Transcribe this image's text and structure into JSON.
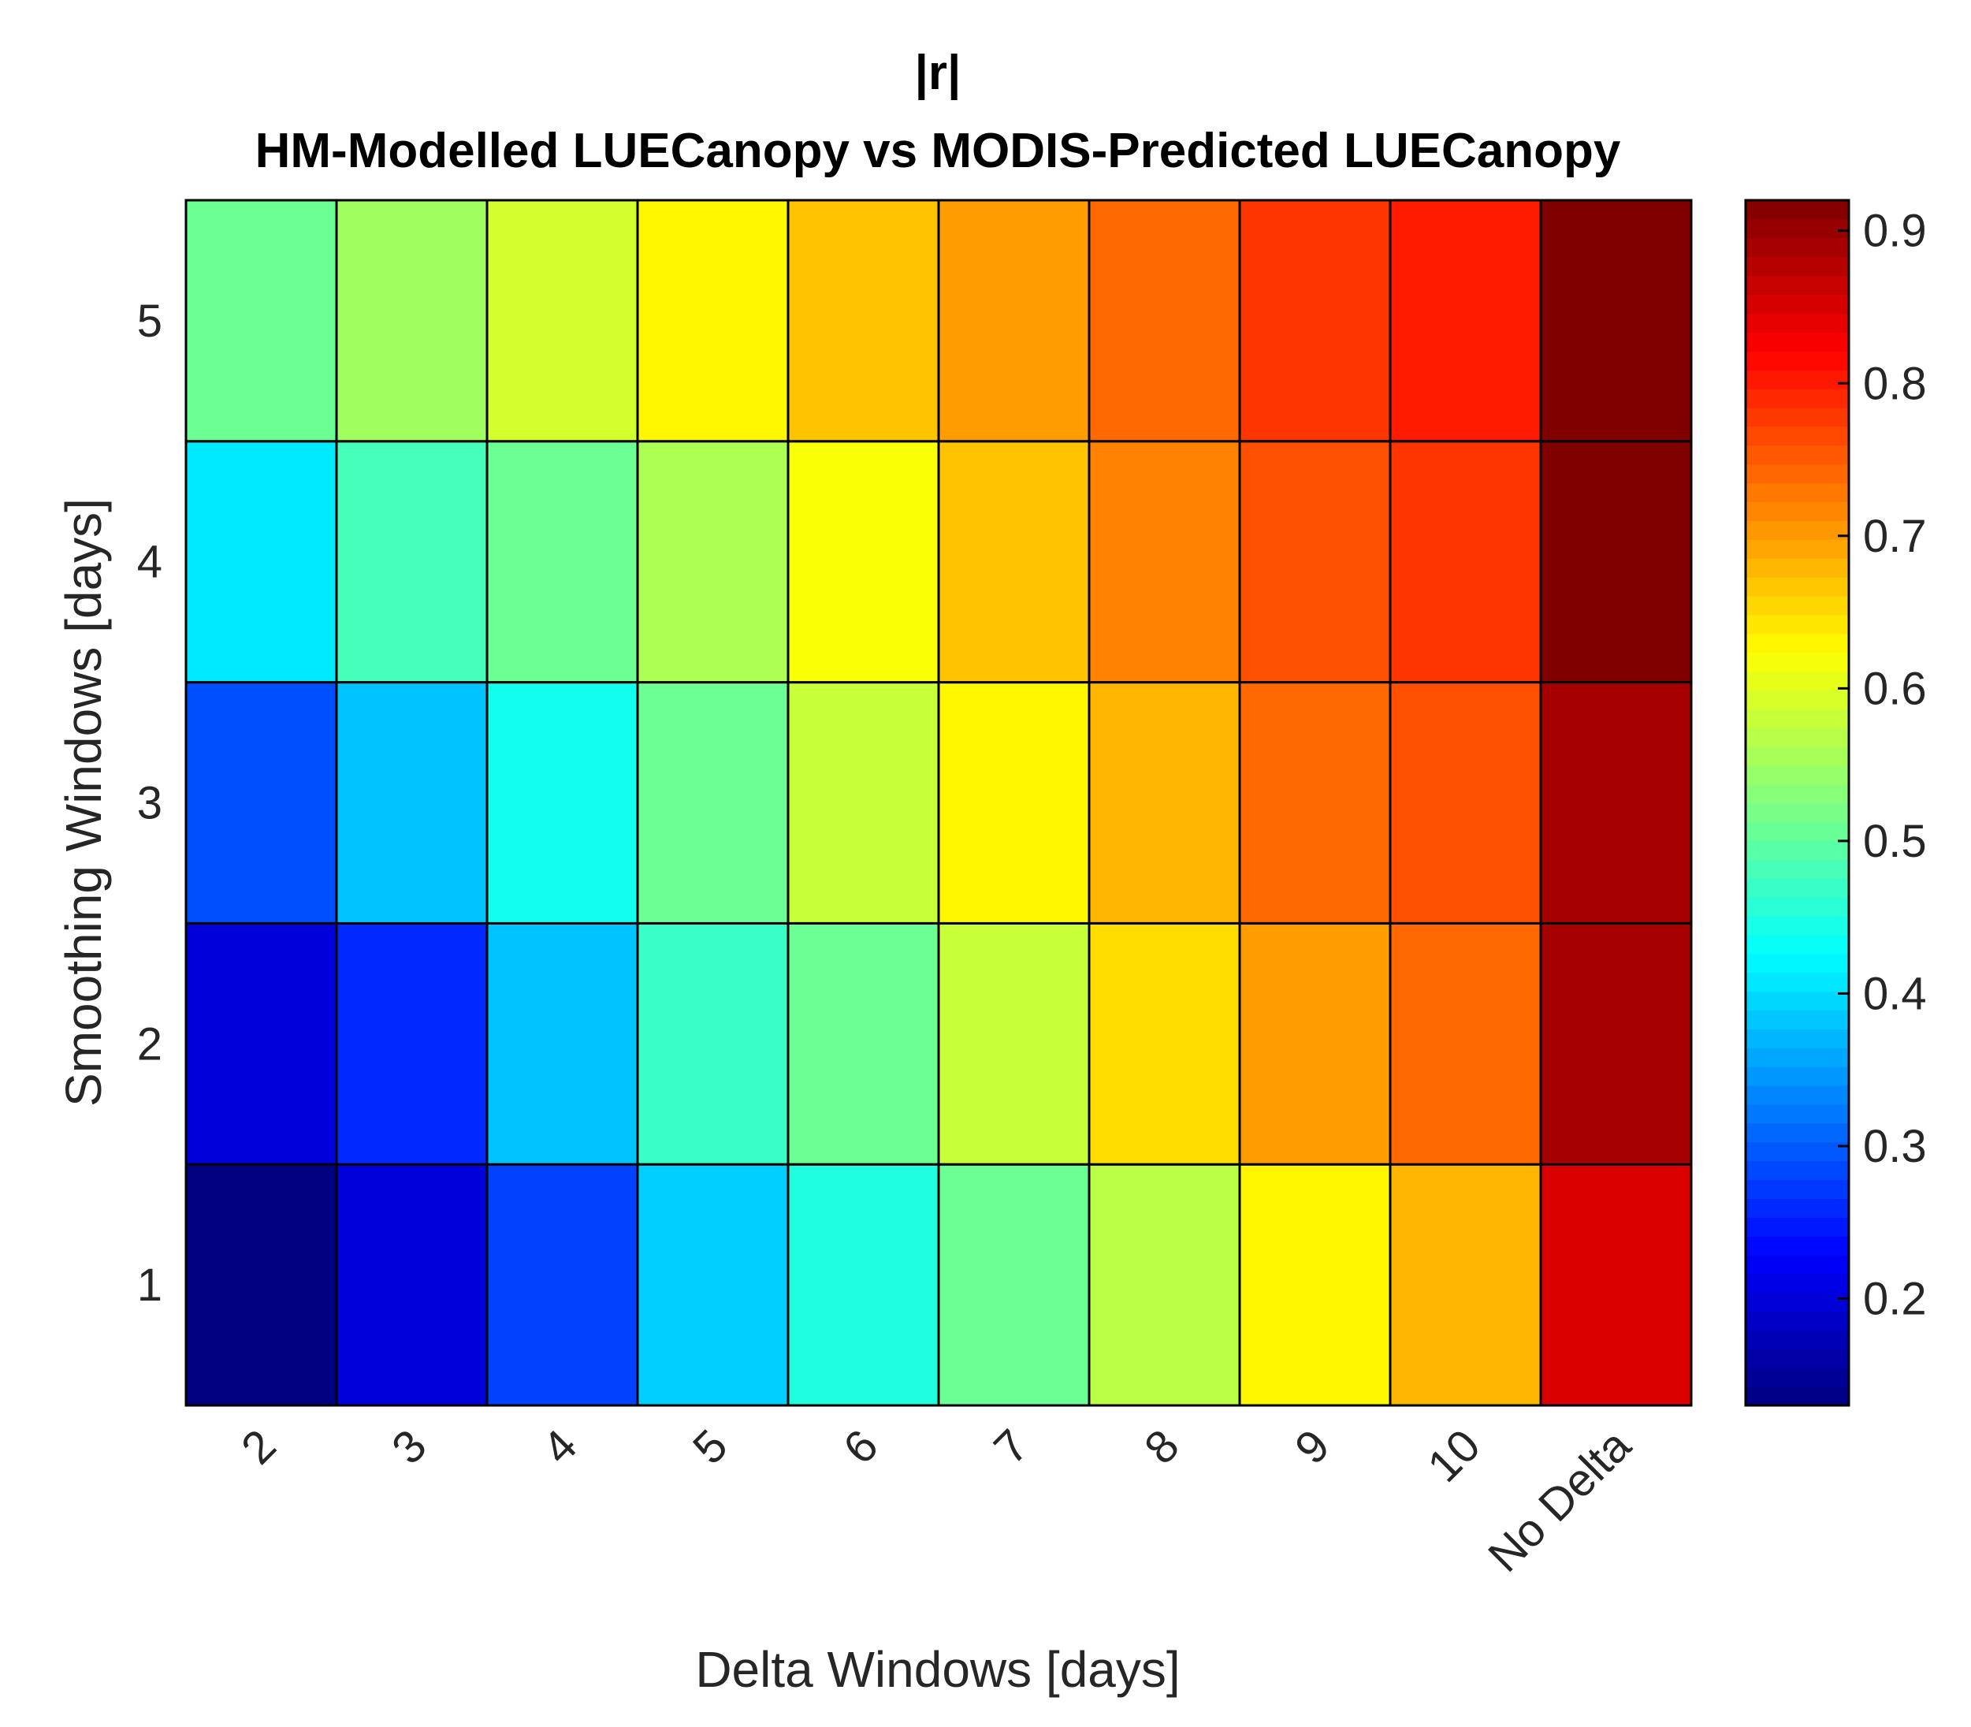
{
  "chart_data": {
    "type": "heatmap",
    "title": [
      "|r|",
      "HM-Modelled LUECanopy vs MODIS-Predicted LUECanopy"
    ],
    "xlabel": "Delta Windows [days]",
    "ylabel": "Smoothing Windows [days]",
    "x_categories": [
      "2",
      "3",
      "4",
      "5",
      "6",
      "7",
      "8",
      "9",
      "10",
      "No Delta"
    ],
    "y_categories": [
      "1",
      "2",
      "3",
      "4",
      "5"
    ],
    "values": [
      [
        0.13,
        0.2,
        0.28,
        0.39,
        0.45,
        0.51,
        0.57,
        0.63,
        0.68,
        0.85
      ],
      [
        0.2,
        0.26,
        0.38,
        0.47,
        0.51,
        0.58,
        0.65,
        0.7,
        0.74,
        0.89
      ],
      [
        0.29,
        0.38,
        0.44,
        0.51,
        0.58,
        0.63,
        0.68,
        0.74,
        0.76,
        0.89
      ],
      [
        0.41,
        0.48,
        0.51,
        0.56,
        0.62,
        0.67,
        0.72,
        0.76,
        0.78,
        0.92
      ],
      [
        0.51,
        0.55,
        0.59,
        0.63,
        0.67,
        0.7,
        0.74,
        0.78,
        0.8,
        0.92
      ]
    ],
    "colorbar": {
      "range": [
        0.13,
        0.92
      ],
      "ticks": [
        "0.2",
        "0.3",
        "0.4",
        "0.5",
        "0.6",
        "0.7",
        "0.8",
        "0.9"
      ],
      "colormap": "jet"
    },
    "grid": false
  }
}
